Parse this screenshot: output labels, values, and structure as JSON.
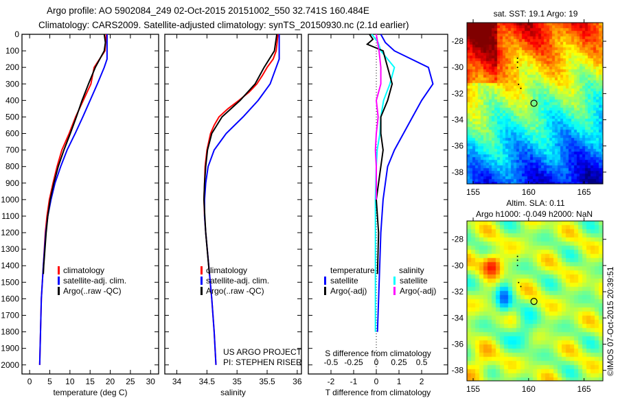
{
  "header": {
    "line1": "Argo profile: AO 5902084_249 02-Oct-2015 20151002_550 32.741S 160.484E",
    "line2": "Climatology: CARS2009. Satellite-adjusted climatology: synTS_20150930.nc (2.1d earlier)"
  },
  "credit": "US ARGO PROJECT",
  "pi": "PI: STEPHEN RISER",
  "timestamp": "©IMOS 07-Oct-2015 20:39:51",
  "colors": {
    "clim": "#ff0000",
    "sat": "#0000ff",
    "argo": "#000000",
    "ssat": "#00ffff",
    "sargo": "#ff00ff"
  },
  "chart_data": [
    {
      "type": "line",
      "id": "temperature",
      "xlabel": "temperature (deg C)",
      "ylabel": "depth",
      "xlim": [
        -1.9,
        32
      ],
      "ylim": [
        2055,
        0
      ],
      "xticks": [
        0,
        5,
        10,
        15,
        20,
        25,
        30
      ],
      "yticks": [
        0,
        100,
        200,
        300,
        400,
        500,
        600,
        700,
        800,
        900,
        1000,
        1100,
        1200,
        1300,
        1400,
        1500,
        1600,
        1700,
        1800,
        1900,
        2000
      ],
      "legend": [
        "climatology",
        "satellite-adj. clim.",
        "Argo(..raw -QC)"
      ],
      "series": [
        {
          "name": "climatology",
          "color": "clim",
          "depth": [
            0,
            100,
            200,
            300,
            400,
            500,
            600,
            700,
            800,
            900,
            1000,
            1100,
            1200,
            1400,
            1600,
            1800,
            2000
          ],
          "values": [
            19,
            18.7,
            16,
            15.2,
            13.3,
            11.4,
            9.8,
            8,
            6.8,
            5.8,
            4.9,
            4.3,
            3.9,
            3.4,
            2.9,
            2.7,
            2.5
          ]
        },
        {
          "name": "satellite-adj. clim.",
          "color": "sat",
          "depth": [
            0,
            150,
            200,
            300,
            400,
            500,
            600,
            700,
            800,
            900,
            1000,
            1100,
            1200,
            1400,
            1600,
            1800,
            2000
          ],
          "values": [
            19.2,
            19.2,
            18.5,
            16.8,
            15,
            13.2,
            11.3,
            9.3,
            7.7,
            6.3,
            5.3,
            4.5,
            4,
            3.4,
            2.9,
            2.7,
            2.5
          ]
        },
        {
          "name": "Argo(..raw -QC)",
          "color": "argo",
          "depth": [
            0,
            50,
            100,
            200,
            300,
            400,
            500,
            600,
            700,
            800,
            900,
            1000,
            1100,
            1200,
            1400,
            1450
          ],
          "values": [
            18.5,
            18.8,
            18.5,
            16.3,
            14.6,
            13,
            11.6,
            10.1,
            8.5,
            7.1,
            6,
            5.1,
            4.5,
            4.1,
            3.5,
            3.4
          ]
        }
      ]
    },
    {
      "type": "line",
      "id": "salinity",
      "xlabel": "salinity",
      "ylabel": "depth",
      "xlim": [
        33.8,
        36.07
      ],
      "ylim": [
        2055,
        0
      ],
      "xticks": [
        34,
        34.5,
        35,
        35.5,
        36
      ],
      "legend": [
        "climatology",
        "satellite-adj. clim.",
        "Argo(..raw -QC)"
      ],
      "series": [
        {
          "name": "climatology",
          "color": "clim",
          "depth": [
            0,
            100,
            150,
            200,
            250,
            300,
            350,
            400,
            450,
            500,
            550,
            600,
            700,
            800,
            900,
            1000,
            1100,
            1200,
            1400,
            1600,
            1800,
            2000
          ],
          "values": [
            35.68,
            35.65,
            35.6,
            35.5,
            35.42,
            35.33,
            35.2,
            35.03,
            34.85,
            34.7,
            34.62,
            34.56,
            34.5,
            34.47,
            34.46,
            34.45,
            34.46,
            34.48,
            34.53,
            34.58,
            34.62,
            34.65
          ]
        },
        {
          "name": "satellite-adj. clim.",
          "color": "sat",
          "depth": [
            0,
            150,
            200,
            300,
            400,
            500,
            600,
            700,
            800,
            900,
            1000,
            1100,
            1200,
            1400,
            1600,
            1800,
            2000
          ],
          "values": [
            35.7,
            35.7,
            35.65,
            35.55,
            35.35,
            35.1,
            34.82,
            34.62,
            34.52,
            34.48,
            34.46,
            34.46,
            34.48,
            34.53,
            34.58,
            34.62,
            34.65
          ]
        },
        {
          "name": "Argo(..raw -QC)",
          "color": "argo",
          "depth": [
            0,
            100,
            200,
            300,
            400,
            500,
            600,
            700,
            800,
            900,
            1000,
            1200,
            1450
          ],
          "values": [
            35.66,
            35.62,
            35.45,
            35.3,
            35.05,
            34.75,
            34.58,
            34.51,
            34.48,
            34.46,
            34.45,
            34.48,
            34.54
          ]
        }
      ]
    },
    {
      "type": "line",
      "id": "difference",
      "xlabel": "T difference from climatology",
      "x2label": "S difference from climatology",
      "xlim": [
        -3,
        3.15
      ],
      "ylim": [
        2055,
        0
      ],
      "xticks": [
        -2,
        -1,
        0,
        1,
        2
      ],
      "x2ticks": [
        -0.5,
        -0.25,
        0,
        0.25,
        0.5
      ],
      "x2ticklabels": [
        "-0.5",
        "-0.25",
        "0",
        "0.25",
        "0.5"
      ],
      "s_to_t_factor": 4,
      "legend": {
        "t_title": "temperature",
        "s_title": "salinity",
        "items": [
          "satellite",
          "Argo(-adj)",
          "satellite",
          "Argo(-adj)"
        ]
      },
      "series": [
        {
          "name": "T satellite",
          "color": "sat",
          "depth": [
            0,
            50,
            100,
            200,
            300,
            400,
            500,
            600,
            700,
            800,
            900,
            1000,
            1200,
            1400,
            1800
          ],
          "values": [
            0.2,
            0.4,
            0.8,
            2.3,
            2.5,
            2.0,
            1.6,
            1.2,
            0.8,
            0.5,
            0.4,
            0.3,
            0.2,
            0.15,
            0.05
          ]
        },
        {
          "name": "S satellite",
          "color": "ssat",
          "depth": [
            0,
            50,
            100,
            200,
            300,
            400,
            500,
            600,
            700,
            800,
            1000,
            1400,
            1800
          ],
          "values": [
            -0.05,
            0.02,
            0.05,
            0.2,
            0.15,
            0.08,
            0.05,
            0.04,
            0.01,
            0,
            -0.01,
            -0.01,
            -0.01
          ]
        },
        {
          "name": "T Argo(-adj)",
          "color": "argo",
          "depth": [
            0,
            30,
            60,
            100,
            200,
            300,
            400,
            500,
            600,
            700,
            800,
            900,
            1000,
            1200,
            1450
          ],
          "values": [
            -0.3,
            -0.15,
            -0.4,
            0.3,
            0.5,
            0.7,
            0.5,
            0.2,
            0.2,
            0.3,
            0.2,
            0.1,
            0.0,
            0.1,
            0.05
          ]
        },
        {
          "name": "S Argo(-adj)",
          "color": "sargo",
          "depth": [
            0,
            100,
            200,
            300,
            400,
            500,
            600,
            700,
            800,
            900,
            1000
          ],
          "values": [
            0,
            0.03,
            0.05,
            0.05,
            0.0,
            0.02,
            0,
            -0.01,
            0,
            0,
            0
          ]
        }
      ]
    }
  ],
  "maps": [
    {
      "id": "sst",
      "title": "sat. SST: 19.1 Argo: 19",
      "xlim": [
        154.44,
        166.7
      ],
      "ylim": [
        -38.9,
        -26.58
      ],
      "xticks": [
        155,
        160,
        165
      ],
      "yticks": [
        -28,
        -30,
        -32,
        -34,
        -36,
        -38
      ],
      "argo": [
        160.484,
        -32.741
      ]
    },
    {
      "id": "sla",
      "title": "Altim. SLA: 0.11",
      "subtitle": "Argo h1000: -0.049 h2000: NaN",
      "xlim": [
        154.44,
        166.7
      ],
      "ylim": [
        -38.8,
        -26.6
      ],
      "xticks": [
        155,
        160,
        165
      ],
      "yticks": [
        -28,
        -30,
        -32,
        -34,
        -36,
        -38
      ],
      "argo": [
        160.484,
        -32.741
      ]
    }
  ]
}
